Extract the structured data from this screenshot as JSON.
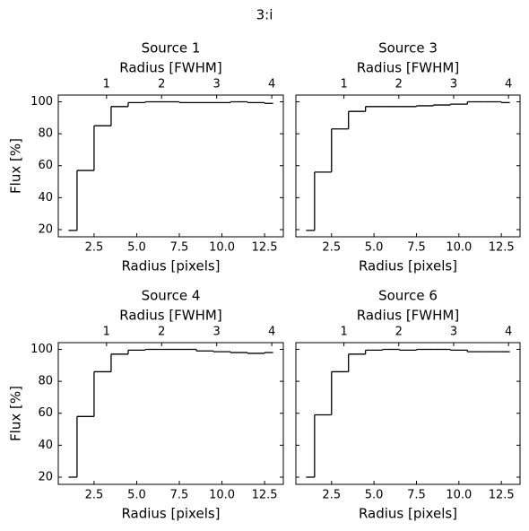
{
  "title": "3:i",
  "chart_data": [
    {
      "type": "step",
      "title": "Source 1",
      "xlabel": "Radius [pixels]",
      "ylabel": "Flux [%]",
      "x2label": "Radius [FWHM]",
      "x": [
        1,
        2,
        3,
        4,
        5,
        6,
        7,
        8,
        9,
        10,
        11,
        12,
        13
      ],
      "values": [
        19.5,
        57,
        85,
        97,
        99.5,
        100,
        100,
        99.5,
        99.5,
        99.5,
        100,
        99.5,
        99
      ],
      "color": "#000000",
      "xlim": [
        0.4,
        13.6
      ],
      "ylim": [
        15.5,
        104.2
      ],
      "xticks": [
        2.5,
        {
          "value": 5,
          "label": "5.0"
        },
        7.5,
        {
          "value": 10,
          "label": "10.0"
        },
        12.5
      ],
      "yticks": [
        20,
        40,
        60,
        80,
        100
      ],
      "show_ytick_labels": true,
      "x2lim": [
        0.124,
        4.21
      ],
      "x2ticks": [
        1,
        2,
        3,
        4
      ]
    },
    {
      "type": "step",
      "title": "Source 3",
      "xlabel": "Radius [pixels]",
      "x2label": "Radius [FWHM]",
      "x": [
        1,
        2,
        3,
        4,
        5,
        6,
        7,
        8,
        9,
        10,
        11,
        12,
        13
      ],
      "values": [
        19.5,
        56,
        83,
        94,
        97,
        97,
        97,
        97.5,
        98,
        98.5,
        100,
        100,
        99.5
      ],
      "color": "#000000",
      "xlim": [
        0.4,
        13.6
      ],
      "ylim": [
        15.5,
        104.2
      ],
      "xticks": [
        2.5,
        {
          "value": 5,
          "label": "5.0"
        },
        7.5,
        {
          "value": 10,
          "label": "10.0"
        },
        12.5
      ],
      "yticks": [
        20,
        40,
        60,
        80,
        100
      ],
      "show_ytick_labels": false,
      "x2lim": [
        0.124,
        4.21
      ],
      "x2ticks": [
        1,
        2,
        3,
        4
      ]
    },
    {
      "type": "step",
      "title": "Source 4",
      "xlabel": "Radius [pixels]",
      "ylabel": "Flux [%]",
      "x2label": "Radius [FWHM]",
      "x": [
        1,
        2,
        3,
        4,
        5,
        6,
        7,
        8,
        9,
        10,
        11,
        12,
        13
      ],
      "values": [
        20,
        58,
        86,
        97,
        99.5,
        100,
        100,
        100,
        99,
        98.5,
        98,
        97.5,
        98
      ],
      "color": "#000000",
      "xlim": [
        0.4,
        13.6
      ],
      "ylim": [
        15.5,
        104.2
      ],
      "xticks": [
        2.5,
        {
          "value": 5,
          "label": "5.0"
        },
        7.5,
        {
          "value": 10,
          "label": "10.0"
        },
        12.5
      ],
      "yticks": [
        20,
        40,
        60,
        80,
        100
      ],
      "show_ytick_labels": true,
      "x2lim": [
        0.124,
        4.21
      ],
      "x2ticks": [
        1,
        2,
        3,
        4
      ]
    },
    {
      "type": "step",
      "title": "Source 6",
      "xlabel": "Radius [pixels]",
      "x2label": "Radius [FWHM]",
      "x": [
        1,
        2,
        3,
        4,
        5,
        6,
        7,
        8,
        9,
        10,
        11,
        12,
        13
      ],
      "values": [
        20,
        59,
        86,
        97,
        99.5,
        100,
        99.5,
        100,
        100,
        99.5,
        98.5,
        98.5,
        98.5
      ],
      "color": "#000000",
      "xlim": [
        0.4,
        13.6
      ],
      "ylim": [
        15.5,
        104.2
      ],
      "xticks": [
        2.5,
        {
          "value": 5,
          "label": "5.0"
        },
        7.5,
        {
          "value": 10,
          "label": "10.0"
        },
        12.5
      ],
      "yticks": [
        20,
        40,
        60,
        80,
        100
      ],
      "show_ytick_labels": false,
      "x2lim": [
        0.124,
        4.21
      ],
      "x2ticks": [
        1,
        2,
        3,
        4
      ]
    }
  ]
}
